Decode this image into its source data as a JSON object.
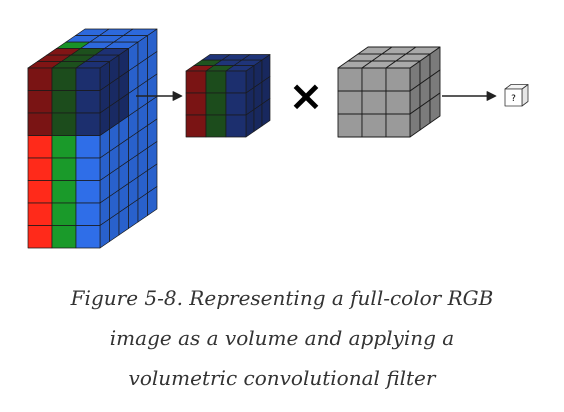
{
  "figure": {
    "caption_lines": [
      "Figure 5-8. Representing a full-color RGB",
      "image as a volume and applying a",
      "volumetric convolutional filter"
    ],
    "operator_symbol": "×",
    "output_label": "?"
  },
  "colors": {
    "red": "#ff2a1a",
    "green": "#1a9a2a",
    "blue": "#2f6ee8",
    "red_dark": "#7a1414",
    "green_dark": "#1c4c1c",
    "blue_dark": "#1c2f6e",
    "filter_gray": "#9a9a9a",
    "output_box": "#ffffff",
    "grid_line": "#1a1a1a"
  }
}
